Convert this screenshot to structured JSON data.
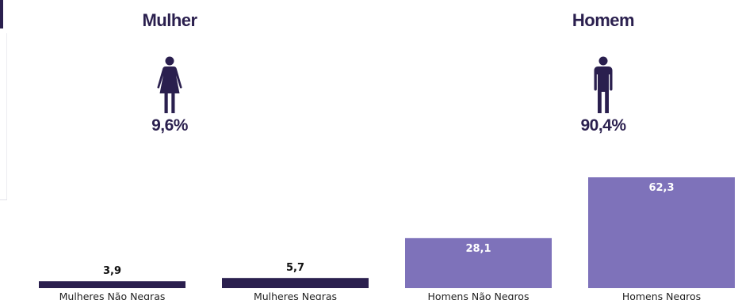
{
  "colors": {
    "dark": "#2a1f4e",
    "light": "#7e72ba",
    "label_dark": "#111111",
    "label_light": "#ffffff"
  },
  "female": {
    "title": "Mulher",
    "icon": "female-person-icon",
    "percent": "9,6%"
  },
  "male": {
    "title": "Homem",
    "icon": "male-person-icon",
    "percent": "90,4%"
  },
  "chart_data": {
    "type": "bar",
    "categories": [
      "Mulheres Não Negras",
      "Mulheres Negras",
      "Homens Não Negros",
      "Homens Negros"
    ],
    "values": [
      3.9,
      5.7,
      28.1,
      62.3
    ],
    "value_labels": [
      "3,9",
      "5,7",
      "28,1",
      "62,3"
    ],
    "bar_colors": [
      "#2a1f4e",
      "#2a1f4e",
      "#7e72ba",
      "#7e72ba"
    ],
    "value_label_position": [
      "above",
      "above",
      "inside",
      "inside"
    ],
    "grid": false,
    "legend": "none",
    "ylim": [
      0,
      62.3
    ]
  }
}
